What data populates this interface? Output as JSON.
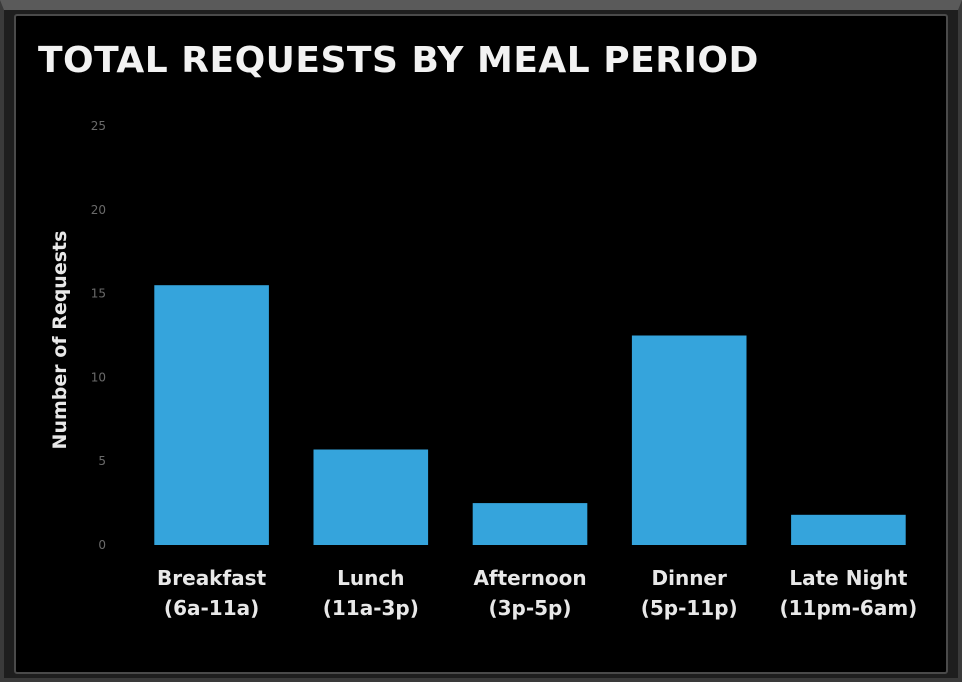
{
  "chart_data": {
    "type": "bar",
    "title": "TOTAL REQUESTS BY MEAL PERIOD",
    "xlabel": "",
    "ylabel": "Number of Requests",
    "categories": [
      [
        "Breakfast",
        "(6a-11a)"
      ],
      [
        "Lunch",
        "(11a-3p)"
      ],
      [
        "Afternoon",
        "(3p-5p)"
      ],
      [
        "Dinner",
        "(5p-11p)"
      ],
      [
        "Late Night",
        "(11pm-6am)"
      ]
    ],
    "values": [
      15.5,
      5.7,
      2.5,
      12.5,
      1.8
    ],
    "ylim": [
      0,
      25
    ],
    "yticks": [
      "0",
      "5",
      "10",
      "15",
      "20",
      "25"
    ],
    "grid": false,
    "legend": "none",
    "colors": {
      "bar": "#35a4dc",
      "background": "#000000",
      "text": "#e8e8e8"
    }
  }
}
